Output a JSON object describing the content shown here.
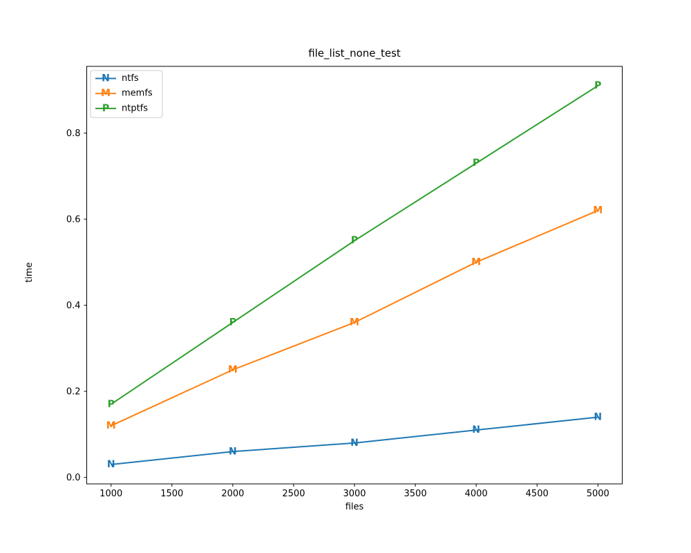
{
  "chart_data": {
    "type": "line",
    "title": "file_list_none_test",
    "xlabel": "files",
    "ylabel": "time",
    "x": [
      1000,
      2000,
      3000,
      4000,
      5000
    ],
    "series": [
      {
        "name": "ntfs",
        "marker": "N",
        "color": "#1f77b4",
        "values": [
          0.03,
          0.06,
          0.08,
          0.11,
          0.14
        ]
      },
      {
        "name": "memfs",
        "marker": "M",
        "color": "#ff7f0e",
        "values": [
          0.12,
          0.25,
          0.36,
          0.5,
          0.62
        ]
      },
      {
        "name": "ntptfs",
        "marker": "P",
        "color": "#2ca02c",
        "values": [
          0.17,
          0.36,
          0.55,
          0.73,
          0.91
        ]
      }
    ],
    "x_ticks": [
      1000,
      1500,
      2000,
      2500,
      3000,
      3500,
      4000,
      4500,
      5000
    ],
    "y_ticks": [
      0.0,
      0.2,
      0.4,
      0.6,
      0.8
    ],
    "xlim": [
      800,
      5200
    ],
    "ylim": [
      -0.015,
      0.955
    ],
    "grid": false,
    "legend_position": "upper left",
    "axis_color": "#000000",
    "legend_border_color": "#cccccc",
    "background_color": "#ffffff"
  }
}
